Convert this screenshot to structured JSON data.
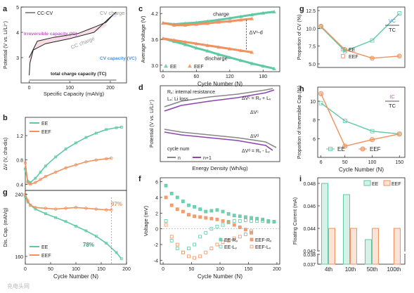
{
  "colors": {
    "ee": "#5fc9a3",
    "eef": "#f0915e",
    "vc": "#4a8fe0",
    "ic": "#c25bc4",
    "purple": "#8e44ad",
    "gray": "#888888"
  },
  "panel_letters": [
    "a",
    "b",
    "c",
    "d",
    "e",
    "f",
    "g",
    "h",
    "i"
  ],
  "watermark": "充电头网",
  "chart_data": [
    {
      "panel": "a",
      "type": "line",
      "series": [
        {
          "name": "CC-CV"
        }
      ],
      "xlabel": "Specific Capacity (mAh/g)",
      "ylabel": "Potential (V vs. Li/Li⁺)",
      "xlim": [
        -20,
        240
      ],
      "ylim": [
        2.0,
        5.0
      ],
      "xticks": [
        0,
        100,
        200
      ],
      "yticks": [
        3,
        4,
        5
      ],
      "x": [
        0,
        20,
        60,
        120,
        160,
        190,
        210,
        215,
        215,
        200,
        160,
        100,
        40,
        10,
        2,
        0
      ],
      "y_charge": [
        3.0,
        3.65,
        3.8,
        3.95,
        4.2,
        4.4,
        4.75,
        4.8,
        4.8,
        4.6,
        4.0,
        3.75,
        3.55,
        3.3,
        2.8,
        2.3
      ],
      "annotations": [
        "CV charge",
        "CC charge",
        "Irreversible capacity (IC)",
        "CV capacity (VC)",
        "total charge capacity (TC)"
      ]
    },
    {
      "panel": "b",
      "type": "line",
      "xlabel": "",
      "ylabel": "ΔV (V, cha-dis)",
      "xlim": [
        0,
        200
      ],
      "ylim": [
        0.3,
        1.5
      ],
      "yticks": [
        0.4,
        0.8,
        1.2
      ],
      "series": [
        {
          "name": "EE",
          "x": [
            0,
            5,
            10,
            20,
            30,
            40,
            60,
            80,
            100,
            120,
            140,
            160,
            180,
            190
          ],
          "values": [
            0.65,
            0.45,
            0.43,
            0.5,
            0.6,
            0.7,
            0.85,
            0.98,
            1.08,
            1.17,
            1.24,
            1.3,
            1.33,
            1.34
          ]
        },
        {
          "name": "EEF",
          "x": [
            0,
            5,
            10,
            20,
            30,
            40,
            60,
            80,
            100,
            120,
            140,
            160,
            170
          ],
          "values": [
            0.75,
            0.42,
            0.4,
            0.43,
            0.48,
            0.53,
            0.6,
            0.67,
            0.72,
            0.77,
            0.8,
            0.82,
            0.83
          ]
        }
      ]
    },
    {
      "panel": "c",
      "type": "line",
      "xlabel": "Cycle Number (N)",
      "ylabel": "Dis. Cap. (mAh/g)",
      "xlim": [
        0,
        200
      ],
      "ylim": [
        150,
        245
      ],
      "yticks": [
        160,
        240
      ],
      "xticks": [
        0,
        50,
        100,
        150,
        200
      ],
      "series": [
        {
          "name": "EE",
          "x": [
            0,
            5,
            10,
            20,
            40,
            60,
            80,
            100,
            120,
            140,
            160,
            180,
            190
          ],
          "values": [
            237,
            230,
            226,
            221,
            215,
            210,
            205,
            199,
            193,
            186,
            177,
            165,
            157
          ]
        },
        {
          "name": "EEF",
          "x": [
            0,
            5,
            10,
            20,
            40,
            60,
            80,
            100,
            120,
            140,
            160,
            170
          ],
          "values": [
            240,
            232,
            226,
            223,
            222,
            221,
            222,
            223,
            222,
            221,
            220,
            220
          ]
        }
      ],
      "labels": [
        "97%",
        "78%"
      ]
    },
    {
      "panel": "d",
      "type": "scatter",
      "xlabel": "Cycle Number (N)",
      "ylabel": "Average Voltage (V)",
      "xlim": [
        -5,
        210
      ],
      "ylim": [
        2.85,
        4.35
      ],
      "xticks": [
        0,
        60,
        120,
        180
      ],
      "yticks": [
        3.0,
        3.6,
        4.2
      ],
      "series": [
        {
          "name": "EE",
          "x": [
            0,
            20,
            40,
            60,
            80,
            100,
            120,
            140,
            160,
            180,
            200
          ],
          "charge": [
            3.98,
            3.95,
            3.97,
            3.99,
            4.02,
            4.05,
            4.09,
            4.13,
            4.17,
            4.21,
            4.24
          ],
          "discharge": [
            3.62,
            3.55,
            3.48,
            3.4,
            3.33,
            3.25,
            3.18,
            3.11,
            3.04,
            2.98,
            2.92
          ]
        },
        {
          "name": "EEF",
          "x": [
            0,
            20,
            40,
            60,
            80,
            100,
            120,
            140,
            160
          ],
          "charge": [
            3.98,
            3.93,
            3.93,
            3.95,
            3.97,
            4.0,
            4.02,
            4.05,
            4.08
          ],
          "discharge": [
            3.62,
            3.58,
            3.54,
            3.5,
            3.46,
            3.42,
            3.38,
            3.34,
            3.3
          ]
        }
      ],
      "annotations": [
        "charge",
        "discharge",
        "ΔVᶜ-d"
      ]
    },
    {
      "panel": "e",
      "type": "line",
      "xlabel": "Energy Density (Wh/kg)",
      "ylabel": "Potential (V vs. Li/Li⁺)",
      "series": [
        {
          "name": "n"
        },
        {
          "name": "n+1"
        }
      ],
      "legend_title": "cycle num",
      "annotations": [
        "Rᵥ: internal resistance",
        "Lᵥ: Li loss",
        "ΔVᶜ = Rᵥ + Lᵥ",
        "ΔVᶜ",
        "ΔVᵈ",
        "ΔVᵈ = Rᵥ - Lᵥ"
      ]
    },
    {
      "panel": "f",
      "type": "scatter",
      "xlabel": "Cycle Number (N)",
      "ylabel": "Voltage (mV)",
      "xlim": [
        -5,
        205
      ],
      "ylim": [
        -4.5,
        6.5
      ],
      "xticks": [
        0,
        50,
        100,
        150,
        200
      ],
      "yticks": [
        -4,
        -2,
        0,
        2,
        4,
        6
      ],
      "series": [
        {
          "name": "EE-Rᵥ",
          "x": [
            5,
            15,
            25,
            35,
            45,
            55,
            65,
            75,
            85,
            95,
            105,
            115,
            125,
            135,
            145,
            155,
            165,
            175,
            185,
            195
          ],
          "values": [
            5.5,
            4.5,
            4.0,
            3.5,
            3.0,
            2.8,
            2.5,
            2.2,
            2.3,
            2.4,
            2.2,
            1.9,
            1.7,
            1.6,
            1.5,
            1.4,
            1.3,
            1.2,
            1.0,
            0.9
          ]
        },
        {
          "name": "EEF-Rᵥ",
          "x": [
            5,
            15,
            25,
            35,
            45,
            55,
            65,
            75,
            85,
            95,
            105,
            115,
            125,
            135,
            145,
            155
          ],
          "values": [
            4.0,
            3.0,
            2.5,
            2.2,
            1.8,
            1.6,
            1.5,
            1.4,
            1.3,
            1.2,
            1.0,
            0.9,
            0.5,
            0.2,
            -0.1,
            -0.5
          ]
        },
        {
          "name": "EE-Lᵥ",
          "x": [
            5,
            15,
            25,
            35,
            45,
            55,
            65,
            75,
            85,
            95,
            105,
            115,
            125,
            135,
            145,
            155,
            165,
            175,
            185,
            195
          ],
          "values": [
            1.0,
            -1.5,
            -2.5,
            -3.0,
            -2.5,
            -2.0,
            -1.0,
            -0.5,
            0.0,
            0.3,
            0.5,
            0.8,
            1.0,
            1.0,
            1.1,
            1.0,
            1.0,
            1.0,
            0.9,
            0.9
          ]
        },
        {
          "name": "EEF-Lᵥ",
          "x": [
            5,
            15,
            25,
            35,
            45,
            55,
            65,
            75,
            85,
            95,
            105,
            115,
            125,
            135,
            145,
            155
          ],
          "values": [
            0.5,
            -1.0,
            -2.0,
            -3.0,
            -3.5,
            -3.7,
            -3.5,
            -3.0,
            -2.5,
            -2.0,
            -1.7,
            -1.5,
            -1.2,
            -1.0,
            -0.7,
            -0.3
          ]
        }
      ]
    },
    {
      "panel": "g",
      "type": "line",
      "xlabel": "",
      "ylabel": "Proportion of CV (%)",
      "xlim": [
        0,
        160
      ],
      "ylim": [
        4.5,
        13
      ],
      "yticks": [
        5.0,
        7.5,
        10.0,
        12.5
      ],
      "categories": [
        6,
        50,
        100,
        150
      ],
      "series": [
        {
          "name": "EE",
          "values": [
            10.2,
            6.8,
            8.3,
            12.1
          ]
        },
        {
          "name": "EEF",
          "values": [
            10.3,
            7.0,
            5.8,
            6.1
          ]
        }
      ],
      "fraction_label": {
        "top": "VC",
        "bottom": "TC"
      }
    },
    {
      "panel": "h",
      "type": "line",
      "xlabel": "Cycle Number (N)",
      "ylabel": "Proportion of Irreversible Cap.(%)",
      "xlim": [
        0,
        160
      ],
      "ylim": [
        4,
        11.5
      ],
      "yticks": [
        6,
        8,
        10
      ],
      "xticks": [
        6,
        50,
        100,
        150
      ],
      "categories": [
        6,
        50,
        100,
        150
      ],
      "series": [
        {
          "name": "EE",
          "values": [
            9.8,
            7.9,
            6.8,
            6.5
          ]
        },
        {
          "name": "EEF",
          "values": [
            10.8,
            5.2,
            5.9,
            6.5
          ]
        }
      ],
      "fraction_label": {
        "top": "IC",
        "bottom": "TC"
      }
    },
    {
      "panel": "i",
      "type": "bar",
      "xlabel": "",
      "ylabel": "Floating Current (mA)",
      "categories": [
        "4th",
        "10th",
        "50th",
        "100th"
      ],
      "yticks": [
        0.037,
        0.038,
        0.042,
        0.044,
        0.046,
        0.048
      ],
      "axis_break": true,
      "series": [
        {
          "name": "EE",
          "values": [
            0.048,
            0.047,
            0.043,
            0.0383
          ]
        },
        {
          "name": "EEF",
          "values": [
            0.044,
            0.044,
            0.044,
            0.044
          ]
        }
      ]
    }
  ]
}
